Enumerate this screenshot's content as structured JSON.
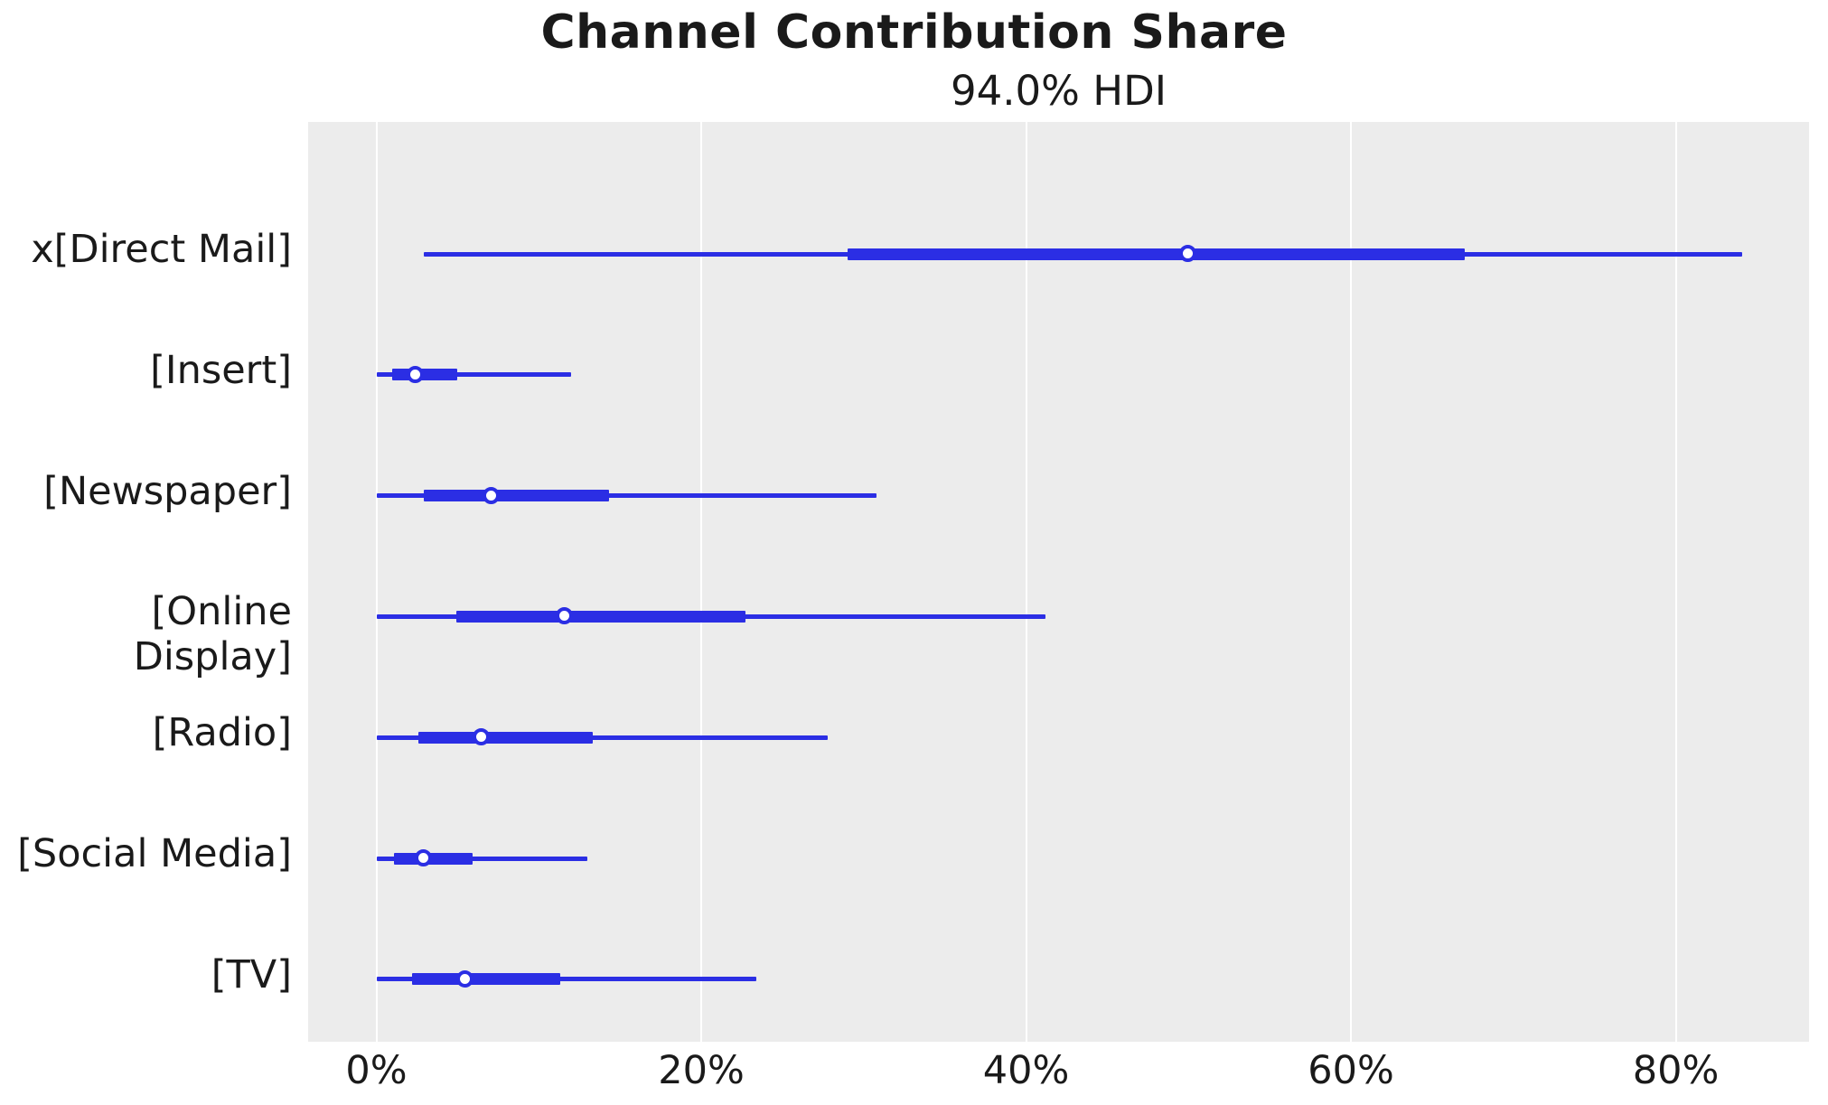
{
  "title": "Channel Contribution Share",
  "subtitle": "94.0% HDI",
  "colors": {
    "line": "#2b2ee4",
    "plot_background": "#ececec",
    "gridline": "#ffffff",
    "text": "#1a1a1a",
    "figure_background": "#ffffff"
  },
  "chart_data": {
    "type": "forest",
    "title": "Channel Contribution Share",
    "subtitle": "94.0% HDI",
    "hdi_probability": 94.0,
    "units": "percent",
    "xlabel": "",
    "ylabel": "",
    "xlim": [
      -4.2,
      88.2
    ],
    "x_ticks": [
      0,
      20,
      40,
      60,
      80
    ],
    "x_tick_labels": [
      "0%",
      "20%",
      "40%",
      "60%",
      "80%"
    ],
    "grid": "vertical-white-on-gray",
    "legend": "none",
    "series": [
      {
        "label": "x[Direct Mail]",
        "hdi_low": 2.9,
        "hdi_high": 84.1,
        "band_low": 29.0,
        "band_high": 67.0,
        "median": 50.0
      },
      {
        "label": "[Insert]",
        "hdi_low": 0.0,
        "hdi_high": 12.0,
        "band_low": 1.0,
        "band_high": 5.0,
        "median": 2.4
      },
      {
        "label": "[Newspaper]",
        "hdi_low": 0.0,
        "hdi_high": 30.8,
        "band_low": 2.9,
        "band_high": 14.3,
        "median": 7.1
      },
      {
        "label": "[Online Display]",
        "hdi_low": 0.0,
        "hdi_high": 41.2,
        "band_low": 4.9,
        "band_high": 22.7,
        "median": 11.6
      },
      {
        "label": "[Radio]",
        "hdi_low": 0.0,
        "hdi_high": 27.8,
        "band_low": 2.6,
        "band_high": 13.3,
        "median": 6.5
      },
      {
        "label": "[Social Media]",
        "hdi_low": 0.0,
        "hdi_high": 13.0,
        "band_low": 1.1,
        "band_high": 5.9,
        "median": 2.9
      },
      {
        "label": "[TV]",
        "hdi_low": 0.0,
        "hdi_high": 23.4,
        "band_low": 2.2,
        "band_high": 11.3,
        "median": 5.5
      }
    ]
  }
}
